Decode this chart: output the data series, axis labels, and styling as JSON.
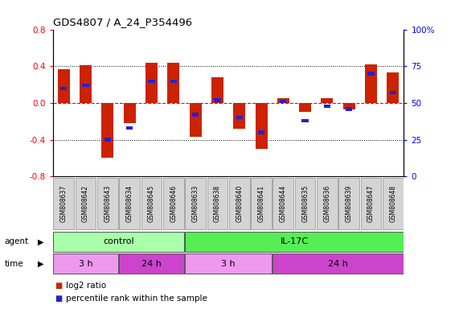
{
  "title": "GDS4807 / A_24_P354496",
  "samples": [
    "GSM808637",
    "GSM808642",
    "GSM808643",
    "GSM808634",
    "GSM808645",
    "GSM808646",
    "GSM808633",
    "GSM808638",
    "GSM808640",
    "GSM808641",
    "GSM808644",
    "GSM808635",
    "GSM808636",
    "GSM808639",
    "GSM808647",
    "GSM808648"
  ],
  "log2_ratio": [
    0.37,
    0.41,
    -0.6,
    -0.22,
    0.44,
    0.44,
    -0.37,
    0.28,
    -0.28,
    -0.5,
    0.05,
    -0.1,
    0.05,
    -0.07,
    0.42,
    0.33
  ],
  "percentile": [
    60,
    62,
    25,
    33,
    65,
    65,
    42,
    52,
    40,
    30,
    51,
    38,
    48,
    46,
    70,
    57
  ],
  "ylim": [
    -0.8,
    0.8
  ],
  "yticks_left": [
    -0.8,
    -0.4,
    0.0,
    0.4,
    0.8
  ],
  "yticks_right": [
    0,
    25,
    50,
    75,
    100
  ],
  "ytick_right_labels": [
    "0",
    "25",
    "50",
    "75",
    "100%"
  ],
  "bar_color": "#cc2200",
  "dot_color": "#2222cc",
  "color_agent_control": "#aaffaa",
  "color_agent_il17c": "#55ee55",
  "color_time_3h": "#ee99ee",
  "color_time_24h": "#cc44cc",
  "color_sample_bg": "#d4d4d4",
  "agent_control_label": "control",
  "agent_il17c_label": "IL-17C",
  "time_labels": [
    "3 h",
    "24 h",
    "3 h",
    "24 h"
  ],
  "time_ranges": [
    [
      0,
      3
    ],
    [
      3,
      6
    ],
    [
      6,
      10
    ],
    [
      10,
      16
    ]
  ],
  "legend_labels": [
    "log2 ratio",
    "percentile rank within the sample"
  ],
  "legend_colors": [
    "#cc2200",
    "#2222cc"
  ]
}
